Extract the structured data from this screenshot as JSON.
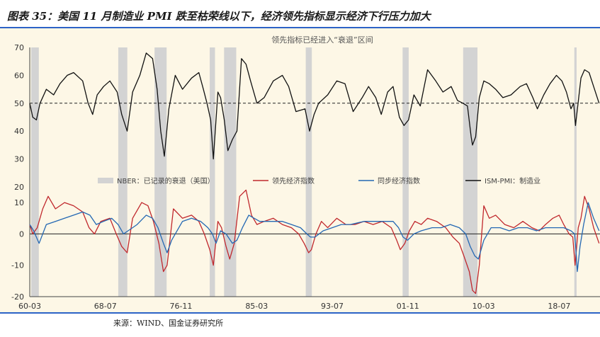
{
  "figure": {
    "title": "图表 35：美国 11 月制造业 PMI 跌至枯荣线以下，经济领先指标显示经济下行压力加大",
    "source": "来源：WIND、国金证券研究所"
  },
  "chart_data": [
    {
      "type": "line",
      "panel": "top",
      "title": "领先指标已经进入“衰退”区间",
      "ylim": [
        20,
        70
      ],
      "yticks": [
        "20",
        "30",
        "40",
        "50",
        "60",
        "70"
      ],
      "reference_line": 50,
      "x_range": [
        1960.17,
        2023.0
      ],
      "recessions": [
        [
          1960.33,
          1961.17
        ],
        [
          1969.92,
          1970.92
        ],
        [
          1973.92,
          1975.25
        ],
        [
          1980.0,
          1980.58
        ],
        [
          1981.58,
          1982.92
        ],
        [
          1990.58,
          1991.25
        ],
        [
          2001.25,
          2001.92
        ],
        [
          2007.92,
          2009.5
        ],
        [
          2020.17,
          2020.42
        ]
      ],
      "series": [
        {
          "name": "ISM-PMI：制造业",
          "color": "#111111",
          "x": [
            1960.17,
            1960.5,
            1960.9,
            1961.3,
            1962.0,
            1962.8,
            1963.5,
            1964.3,
            1965.0,
            1966.0,
            1966.6,
            1967.1,
            1967.6,
            1968.3,
            1969.0,
            1969.8,
            1970.3,
            1970.9,
            1971.5,
            1972.3,
            1973.0,
            1973.7,
            1974.2,
            1974.6,
            1975.0,
            1975.5,
            1976.2,
            1977.0,
            1978.0,
            1978.8,
            1979.3,
            1979.7,
            1980.1,
            1980.4,
            1980.9,
            1981.2,
            1981.6,
            1982.0,
            1982.5,
            1983.0,
            1983.5,
            1984.0,
            1984.5,
            1985.2,
            1986.0,
            1987.0,
            1988.0,
            1988.7,
            1989.5,
            1990.5,
            1991.0,
            1991.5,
            1992.0,
            1993.0,
            1994.0,
            1994.9,
            1995.8,
            1996.8,
            1997.5,
            1998.3,
            1998.9,
            1999.6,
            2000.2,
            2000.9,
            2001.4,
            2001.9,
            2002.5,
            2003.2,
            2004.0,
            2004.9,
            2005.7,
            2006.6,
            2007.3,
            2007.9,
            2008.4,
            2008.8,
            2008.95,
            2009.3,
            2009.7,
            2010.2,
            2010.8,
            2011.5,
            2012.3,
            2013.2,
            2014.2,
            2014.9,
            2015.6,
            2016.1,
            2016.8,
            2017.5,
            2018.2,
            2018.8,
            2019.3,
            2019.8,
            2020.1,
            2020.3,
            2020.55,
            2020.9,
            2021.3,
            2021.8,
            2022.3,
            2022.9
          ],
          "values": [
            50,
            45,
            44,
            50,
            55,
            53,
            57,
            60,
            61,
            58,
            50,
            46,
            53,
            56,
            58,
            54,
            46,
            40,
            54,
            60,
            68,
            66,
            55,
            40,
            31,
            48,
            60,
            55,
            59,
            61,
            55,
            50,
            44,
            30,
            54,
            52,
            44,
            33,
            37,
            40,
            66,
            64,
            58,
            50,
            52,
            58,
            60,
            56,
            47,
            48,
            40,
            46,
            50,
            53,
            58,
            57,
            47,
            52,
            56,
            52,
            46,
            54,
            56,
            45,
            42,
            44,
            53,
            49,
            62,
            58,
            54,
            56,
            51,
            50,
            49,
            38,
            35,
            38,
            52,
            58,
            57,
            55,
            52,
            53,
            56,
            57,
            52,
            48,
            53,
            57,
            60,
            58,
            54,
            48,
            50,
            42,
            49,
            59,
            62,
            61,
            56,
            50
          ]
        }
      ]
    },
    {
      "type": "line",
      "panel": "bottom",
      "ylim": [
        -20,
        15
      ],
      "yticks": [
        "-20",
        "-10",
        "0",
        "10"
      ],
      "x_ticks": [
        "60-03",
        "68-07",
        "76-11",
        "85-03",
        "93-07",
        "01-11",
        "10-03",
        "18-07"
      ],
      "x_tick_values": [
        1960.17,
        1968.5,
        1976.83,
        1985.17,
        1993.5,
        2001.83,
        2010.17,
        2018.5
      ],
      "recessions": [
        [
          1960.33,
          1961.17
        ],
        [
          1969.92,
          1970.92
        ],
        [
          1973.92,
          1975.25
        ],
        [
          1980.0,
          1980.58
        ],
        [
          1981.58,
          1982.92
        ],
        [
          1990.58,
          1991.25
        ],
        [
          2001.25,
          2001.92
        ],
        [
          2007.92,
          2009.5
        ],
        [
          2020.17,
          2020.42
        ]
      ],
      "legend": [
        "NBER：已记录的衰退（美国）",
        "领先经济指数",
        "同步经济指数",
        "ISM-PMI：制造业"
      ],
      "series": [
        {
          "name": "领先经济指数",
          "color": "#c0282d",
          "x": [
            1960.17,
            1960.5,
            1961.0,
            1961.6,
            1962.2,
            1963.0,
            1964.0,
            1965.0,
            1966.0,
            1966.7,
            1967.3,
            1968.0,
            1969.0,
            1969.7,
            1970.3,
            1970.9,
            1971.5,
            1972.5,
            1973.2,
            1973.8,
            1974.4,
            1974.9,
            1975.3,
            1976.0,
            1977.0,
            1978.0,
            1978.8,
            1979.4,
            1980.0,
            1980.4,
            1980.9,
            1981.3,
            1981.8,
            1982.2,
            1982.7,
            1983.3,
            1984.0,
            1984.6,
            1985.2,
            1986.0,
            1987.0,
            1988.0,
            1989.0,
            1989.8,
            1990.4,
            1990.9,
            1991.2,
            1991.7,
            1992.3,
            1993.0,
            1994.0,
            1995.0,
            1996.0,
            1997.0,
            1998.0,
            1999.0,
            2000.0,
            2000.6,
            2001.0,
            2001.5,
            2002.0,
            2002.6,
            2003.3,
            2004.0,
            2005.0,
            2006.0,
            2006.8,
            2007.5,
            2008.0,
            2008.6,
            2008.95,
            2009.3,
            2009.7,
            2010.2,
            2010.8,
            2011.5,
            2012.5,
            2013.5,
            2014.5,
            2015.5,
            2016.3,
            2017.0,
            2017.8,
            2018.5,
            2019.0,
            2019.6,
            2020.0,
            2020.25,
            2020.4,
            2020.6,
            2020.9,
            2021.3,
            2021.8,
            2022.3,
            2022.9
          ],
          "values": [
            3,
            0,
            2,
            8,
            12,
            8,
            10,
            9,
            7,
            2,
            0,
            4,
            5,
            0,
            -4,
            -6,
            5,
            10,
            9,
            4,
            -3,
            -12,
            -10,
            8,
            5,
            6,
            4,
            0,
            -5,
            -10,
            4,
            2,
            -4,
            -8,
            -3,
            12,
            14,
            6,
            3,
            4,
            5,
            3,
            2,
            0,
            -3,
            -6,
            -5,
            0,
            4,
            2,
            5,
            3,
            3,
            4,
            3,
            4,
            2,
            -2,
            -5,
            -3,
            1,
            4,
            3,
            5,
            4,
            2,
            -1,
            -3,
            -7,
            -12,
            -18,
            -19,
            -10,
            9,
            5,
            6,
            3,
            2,
            4,
            2,
            1,
            3,
            5,
            6,
            3,
            0,
            -1,
            -10,
            -5,
            2,
            5,
            12,
            8,
            2,
            -3
          ]
        },
        {
          "name": "同步经济指数",
          "color": "#2468b3",
          "x": [
            1960.17,
            1960.6,
            1961.2,
            1962.0,
            1963.0,
            1964.0,
            1965.0,
            1966.0,
            1966.8,
            1967.5,
            1968.3,
            1969.2,
            1969.9,
            1970.5,
            1971.0,
            1972.0,
            1973.0,
            1973.7,
            1974.3,
            1974.9,
            1975.3,
            1975.8,
            1977.0,
            1978.0,
            1979.0,
            1979.8,
            1980.3,
            1980.7,
            1981.2,
            1981.8,
            1982.5,
            1983.0,
            1983.6,
            1984.3,
            1985.5,
            1987.0,
            1988.0,
            1989.0,
            1990.0,
            1990.7,
            1991.1,
            1991.6,
            1992.5,
            1993.5,
            1994.5,
            1995.5,
            1997.0,
            1998.0,
            1999.0,
            2000.2,
            2000.8,
            2001.3,
            2001.8,
            2002.5,
            2003.3,
            2004.5,
            2005.5,
            2006.5,
            2007.5,
            2008.2,
            2008.7,
            2009.2,
            2009.6,
            2010.2,
            2011.0,
            2012.0,
            2013.0,
            2014.0,
            2015.0,
            2016.0,
            2017.0,
            2018.0,
            2019.0,
            2019.8,
            2020.2,
            2020.35,
            2020.5,
            2020.8,
            2021.2,
            2021.7,
            2022.3,
            2022.9
          ],
          "values": [
            3,
            1,
            -3,
            3,
            4,
            5,
            6,
            7,
            6,
            3,
            4,
            5,
            3,
            0,
            1,
            3,
            6,
            5,
            2,
            -3,
            -6,
            -2,
            4,
            5,
            4,
            2,
            0,
            -3,
            1,
            0,
            -3,
            -2,
            2,
            6,
            4,
            4,
            4,
            3,
            2,
            0,
            -1,
            -1,
            1,
            2,
            3,
            3,
            4,
            4,
            4,
            4,
            2,
            -1,
            -2,
            0,
            1,
            2,
            2,
            3,
            2,
            0,
            -4,
            -7,
            -8,
            -2,
            2,
            2,
            1,
            2,
            2,
            1,
            2,
            2,
            2,
            1,
            0,
            -5,
            -12,
            -4,
            3,
            10,
            5,
            1
          ]
        }
      ]
    }
  ],
  "colors": {
    "background": "#fdf7e6",
    "recession": "#d3d3d3",
    "rule": "#2c63c7",
    "axis": "#222222"
  }
}
